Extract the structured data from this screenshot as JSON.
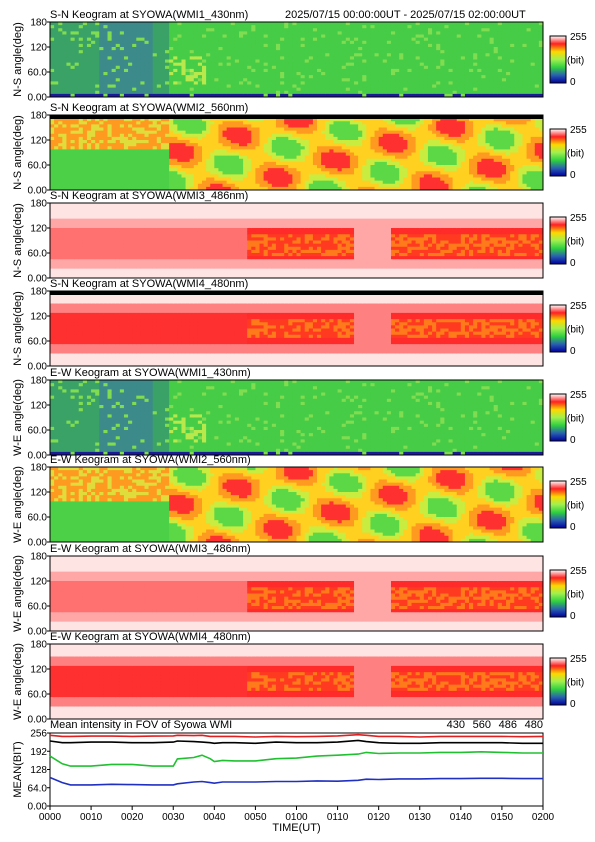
{
  "header": {
    "time_range": "2025/07/15 00:00:00UT - 2025/07/15 02:00:00UT"
  },
  "colorbar": {
    "max_label": "255",
    "unit_label": "(bit)",
    "min_label": "0",
    "stops": [
      "#ffffff",
      "#ff2020",
      "#ffd800",
      "#a0f050",
      "#30d040",
      "#2a60b0",
      "#0000a0"
    ]
  },
  "x_axis": {
    "label": "TIME(UT)",
    "ticks": [
      "0000",
      "0010",
      "0020",
      "0030",
      "0040",
      "0050",
      "0100",
      "0110",
      "0120",
      "0130",
      "0140",
      "0150",
      "0200"
    ]
  },
  "keograms": [
    {
      "title": "S-N Keogram at SYOWA(WMI1_430nm)",
      "ylabel": "N-S angle(deg)",
      "yticks": [
        "180",
        "120",
        "60.0",
        "0.00"
      ],
      "pattern": "g430"
    },
    {
      "title": "S-N Keogram at SYOWA(WMI2_560nm)",
      "ylabel": "N-S angle(deg)",
      "yticks": [
        "180",
        "120",
        "60.0",
        "0.00"
      ],
      "pattern": "g560"
    },
    {
      "title": "S-N Keogram at SYOWA(WMI3_486nm)",
      "ylabel": "N-S angle(deg)",
      "yticks": [
        "180",
        "120",
        "60.0",
        "0.00"
      ],
      "pattern": "r486"
    },
    {
      "title": "S-N Keogram at SYOWA(WMI4_480nm)",
      "ylabel": "N-S angle(deg)",
      "yticks": [
        "180",
        "120",
        "60.0",
        "0.00"
      ],
      "pattern": "r480"
    },
    {
      "title": "E-W Keogram at SYOWA(WMI1_430nm)",
      "ylabel": "W-E angle(deg)",
      "yticks": [
        "180",
        "120",
        "60.0",
        "0.00"
      ],
      "pattern": "g430"
    },
    {
      "title": "E-W Keogram at SYOWA(WMI2_560nm)",
      "ylabel": "W-E angle(deg)",
      "yticks": [
        "180",
        "120",
        "60.0",
        "0.00"
      ],
      "pattern": "g560"
    },
    {
      "title": "E-W Keogram at SYOWA(WMI3_486nm)",
      "ylabel": "W-E angle(deg)",
      "yticks": [
        "180",
        "120",
        "60.0",
        "0.00"
      ],
      "pattern": "r486"
    },
    {
      "title": "E-W Keogram at SYOWA(WMI4_480nm)",
      "ylabel": "W-E angle(deg)",
      "yticks": [
        "180",
        "120",
        "60.0",
        "0.00"
      ],
      "pattern": "r480"
    }
  ],
  "chart_data": {
    "type": "line",
    "title": "Mean intensity in FOV of Syowa WMI",
    "xlabel": "TIME(UT)",
    "ylabel": "MEAN(BIT)",
    "ylim": [
      0,
      256
    ],
    "yticks": [
      "256",
      "192",
      "128",
      "64.0",
      "0.00"
    ],
    "x": [
      0,
      3,
      5,
      10,
      15,
      20,
      25,
      30,
      31,
      35,
      37,
      39,
      40,
      42,
      45,
      50,
      55,
      60,
      65,
      70,
      75,
      77,
      80,
      85,
      90,
      95,
      100,
      105,
      110,
      115,
      120
    ],
    "series": [
      {
        "name": "430",
        "color": "#2030c0",
        "values": [
          100,
          82,
          74,
          74,
          76,
          75,
          74,
          74,
          78,
          84,
          86,
          82,
          80,
          84,
          84,
          84,
          86,
          86,
          88,
          87,
          90,
          94,
          93,
          95,
          95,
          96,
          96,
          97,
          97,
          96,
          96
        ]
      },
      {
        "name": "560",
        "color": "#20c030",
        "values": [
          175,
          148,
          140,
          140,
          146,
          146,
          140,
          140,
          165,
          170,
          178,
          166,
          156,
          160,
          158,
          158,
          166,
          168,
          175,
          178,
          182,
          188,
          184,
          186,
          186,
          188,
          188,
          190,
          188,
          186,
          186
        ]
      },
      {
        "name": "486",
        "color": "#e02020",
        "values": [
          248,
          244,
          244,
          245,
          245,
          244,
          245,
          246,
          248,
          247,
          248,
          244,
          244,
          244,
          244,
          242,
          244,
          243,
          244,
          246,
          250,
          248,
          244,
          244,
          242,
          244,
          244,
          244,
          244,
          243,
          244
        ]
      },
      {
        "name": "480",
        "color": "#000000",
        "values": [
          228,
          222,
          222,
          224,
          224,
          222,
          222,
          224,
          228,
          226,
          224,
          222,
          220,
          222,
          222,
          220,
          224,
          222,
          222,
          224,
          230,
          226,
          222,
          220,
          220,
          222,
          222,
          222,
          222,
          220,
          220
        ]
      }
    ]
  }
}
